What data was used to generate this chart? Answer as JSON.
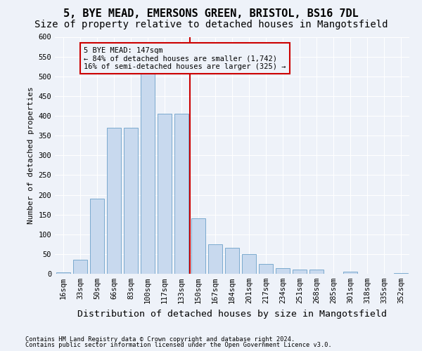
{
  "title1": "5, BYE MEAD, EMERSONS GREEN, BRISTOL, BS16 7DL",
  "title2": "Size of property relative to detached houses in Mangotsfield",
  "xlabel": "Distribution of detached houses by size in Mangotsfield",
  "ylabel": "Number of detached properties",
  "annotation_line1": "5 BYE MEAD: 147sqm",
  "annotation_line2": "← 84% of detached houses are smaller (1,742)",
  "annotation_line3": "16% of semi-detached houses are larger (325) →",
  "footer1": "Contains HM Land Registry data © Crown copyright and database right 2024.",
  "footer2": "Contains public sector information licensed under the Open Government Licence v3.0.",
  "categories": [
    "16sqm",
    "33sqm",
    "50sqm",
    "66sqm",
    "83sqm",
    "100sqm",
    "117sqm",
    "133sqm",
    "150sqm",
    "167sqm",
    "184sqm",
    "201sqm",
    "217sqm",
    "234sqm",
    "251sqm",
    "268sqm",
    "285sqm",
    "301sqm",
    "318sqm",
    "335sqm",
    "352sqm"
  ],
  "values": [
    3,
    35,
    190,
    370,
    370,
    510,
    405,
    405,
    140,
    75,
    65,
    50,
    25,
    15,
    10,
    10,
    0,
    5,
    0,
    0,
    2
  ],
  "bar_color": "#c8d9ee",
  "bar_edge_color": "#6ca0c8",
  "marker_color": "#cc0000",
  "ylim": [
    0,
    600
  ],
  "yticks": [
    0,
    50,
    100,
    150,
    200,
    250,
    300,
    350,
    400,
    450,
    500,
    550,
    600
  ],
  "bg_color": "#eef2f9",
  "grid_color": "#ffffff",
  "title_fontsize": 11,
  "subtitle_fontsize": 10,
  "tick_fontsize": 7.5,
  "ylabel_fontsize": 8,
  "xlabel_fontsize": 9.5
}
